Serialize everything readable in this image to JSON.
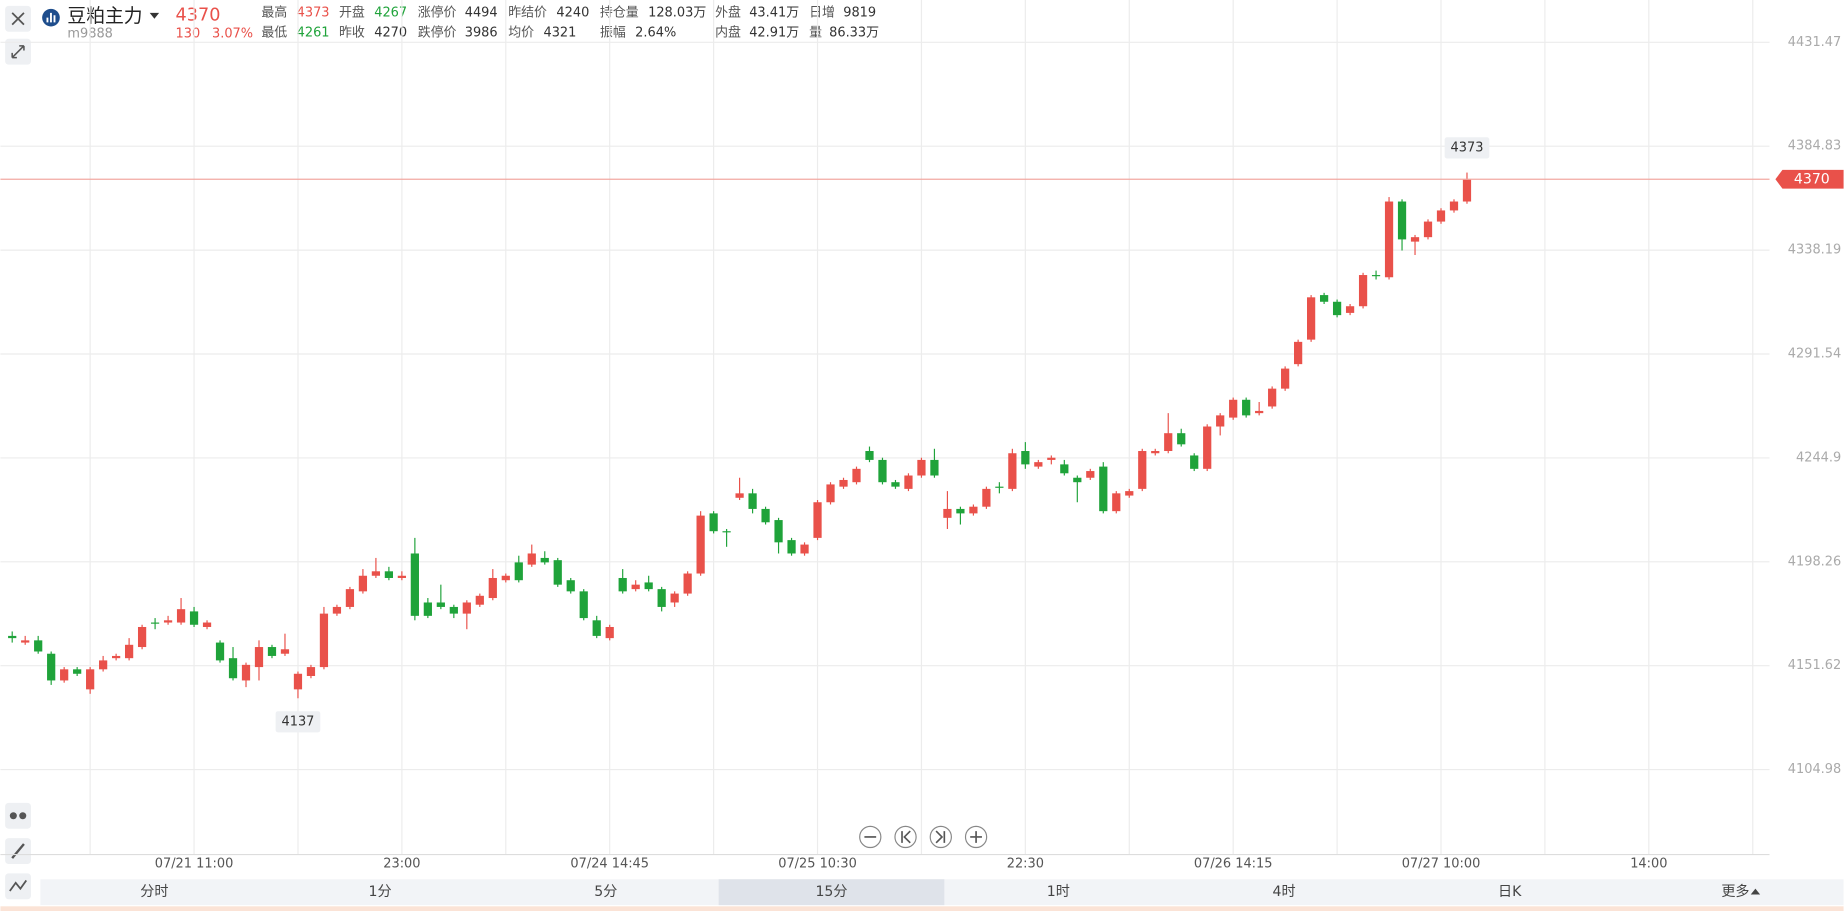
{
  "header": {
    "name": "豆粕主力",
    "code": "m9888",
    "price": "4370",
    "change": "130",
    "change_pct": "3.07%",
    "stats": [
      [
        {
          "label": "最高",
          "value": "4373",
          "color": "#e9514a"
        },
        {
          "label": "开盘",
          "value": "4267",
          "color": "#1fa33a"
        },
        {
          "label": "涨停价",
          "value": "4494"
        },
        {
          "label": "昨结价",
          "value": "4240"
        },
        {
          "label": "持仓量",
          "value": "128.03万"
        },
        {
          "label": "外盘",
          "value": "43.41万"
        },
        {
          "label": "日增",
          "value": "9819"
        }
      ],
      [
        {
          "label": "最低",
          "value": "4261",
          "color": "#1fa33a"
        },
        {
          "label": "昨收",
          "value": "4270"
        },
        {
          "label": "跌停价",
          "value": "3986"
        },
        {
          "label": "均价",
          "value": "4321"
        },
        {
          "label": "振幅",
          "value": "2.64%"
        },
        {
          "label": "内盘",
          "value": "42.91万"
        },
        {
          "label": "量",
          "value": "86.33万"
        }
      ]
    ]
  },
  "tabs": [
    "分时",
    "1分",
    "5分",
    "15分",
    "1时",
    "4时",
    "日K",
    "更多"
  ],
  "selected_tab": 3,
  "chart_data": {
    "type": "candlestick",
    "up_color": "#e9514a",
    "down_color": "#1fa33a",
    "ylim": [
      4066.83,
      4450.47
    ],
    "yticks": [
      4104.98,
      4151.62,
      4198.26,
      4244.9,
      4291.54,
      4338.19,
      4384.83,
      4431.47
    ],
    "grid": true,
    "last_price": 4370,
    "high_label": 4373,
    "low_label": 4137,
    "categories": [
      null,
      null,
      null,
      null,
      null,
      null,
      null,
      null,
      null,
      null,
      null,
      null,
      null,
      null,
      "07/21 11:00",
      null,
      null,
      null,
      null,
      null,
      null,
      null,
      null,
      null,
      null,
      null,
      null,
      null,
      null,
      null,
      "23:00",
      null,
      null,
      null,
      null,
      null,
      null,
      null,
      null,
      null,
      null,
      null,
      null,
      null,
      null,
      null,
      "07/24 14:45",
      null,
      null,
      null,
      null,
      null,
      null,
      null,
      null,
      null,
      null,
      null,
      null,
      null,
      null,
      null,
      "07/25 10:30",
      null,
      null,
      null,
      null,
      null,
      null,
      null,
      null,
      null,
      null,
      null,
      null,
      null,
      null,
      null,
      "22:30",
      null,
      null,
      null,
      null,
      null,
      null,
      null,
      null,
      null,
      null,
      null,
      null,
      null,
      null,
      null,
      "07/26 14:15",
      null,
      null,
      null,
      null,
      null,
      null,
      null,
      null,
      null,
      null,
      null,
      null,
      null,
      null,
      null,
      "07/27 10:00",
      null,
      null,
      null,
      null,
      null,
      null,
      null,
      null,
      null,
      null,
      null,
      null,
      null,
      null,
      null,
      "14:00",
      null,
      null,
      null,
      null,
      null,
      null,
      null,
      null,
      null
    ],
    "open": [
      4165,
      4162,
      4163,
      4157,
      4145,
      4150,
      4141,
      4150,
      4155,
      4155,
      4160,
      4171,
      4171,
      4171,
      4176,
      4169,
      4162,
      4155,
      4145,
      4151,
      4160,
      4157,
      4141,
      4147,
      4151,
      4175,
      4178,
      4185,
      4192,
      4194,
      4191,
      4202,
      4180,
      4180,
      4178,
      4175,
      4179,
      4182,
      4190,
      4198,
      4197,
      4200,
      4199,
      4190,
      4185,
      4172,
      4164,
      4191,
      4186,
      4189,
      4186,
      4180,
      4184,
      4193,
      4220,
      4212,
      4227,
      4229,
      4222,
      4217,
      4208,
      4202,
      4209,
      4225,
      4232,
      4234,
      4248,
      4244,
      4234,
      4231,
      4237,
      4244,
      4218,
      4222,
      4220,
      4223,
      4232,
      4231,
      4248,
      4241,
      4244,
      4242,
      4236,
      4236,
      4241,
      4221,
      4228,
      4231,
      4247,
      4248,
      4256,
      4246,
      4240,
      4259,
      4263,
      4271,
      4265,
      4268,
      4276,
      4287,
      4298,
      4318,
      4315,
      4310,
      4313,
      4327,
      4326,
      4360,
      4342,
      4344,
      4351,
      4356,
      4360,
      null,
      null,
      null,
      null,
      null,
      null,
      null,
      null,
      null,
      null,
      null,
      null,
      null,
      null,
      null,
      null,
      null,
      null,
      null,
      null,
      null,
      null,
      null
    ],
    "high": [
      4167,
      4165,
      4165,
      4158,
      4151,
      4151,
      4151,
      4156,
      4157,
      4164,
      4170,
      4173,
      4174,
      4182,
      4178,
      4172,
      4163,
      4160,
      4153,
      4163,
      4161,
      4166,
      4149,
      4152,
      4178,
      4179,
      4187,
      4195,
      4200,
      4196,
      4194,
      4209,
      4182,
      4188,
      4179,
      4181,
      4184,
      4195,
      4193,
      4201,
      4206,
      4203,
      4200,
      4191,
      4186,
      4174,
      4170,
      4195,
      4190,
      4192,
      4187,
      4185,
      4194,
      4221,
      4221,
      4213,
      4236,
      4231,
      4223,
      4218,
      4209,
      4207,
      4226,
      4234,
      4236,
      4241,
      4250,
      4245,
      4235,
      4238,
      4245,
      4249,
      4230,
      4223,
      4224,
      4232,
      4234,
      4249,
      4252,
      4244,
      4246,
      4244,
      4237,
      4240,
      4243,
      4230,
      4231,
      4249,
      4249,
      4265,
      4258,
      4247,
      4260,
      4265,
      4272,
      4272,
      4270,
      4277,
      4286,
      4298,
      4318,
      4319,
      4316,
      4314,
      4328,
      4329,
      4362,
      4361,
      4345,
      4352,
      4357,
      4361,
      4373,
      null,
      null,
      null,
      null,
      null,
      null,
      null,
      null,
      null,
      null,
      null,
      null,
      null,
      null,
      null,
      null,
      null,
      null,
      null,
      null,
      null,
      null,
      null
    ],
    "low": [
      4162,
      4161,
      4157,
      4143,
      4144,
      4147,
      4139,
      4149,
      4154,
      4154,
      4159,
      4168,
      4170,
      4170,
      4169,
      4168,
      4153,
      4145,
      4142,
      4145,
      4155,
      4156,
      4137,
      4146,
      4150,
      4174,
      4177,
      4184,
      4191,
      4190,
      4190,
      4172,
      4173,
      4177,
      4173,
      4168,
      4178,
      4181,
      4189,
      4189,
      4196,
      4197,
      4187,
      4184,
      4172,
      4164,
      4163,
      4184,
      4185,
      4185,
      4176,
      4178,
      4183,
      4192,
      4211,
      4205,
      4226,
      4220,
      4215,
      4202,
      4201,
      4201,
      4208,
      4224,
      4231,
      4233,
      4243,
      4233,
      4231,
      4230,
      4236,
      4236,
      4213,
      4215,
      4219,
      4222,
      4229,
      4230,
      4240,
      4240,
      4242,
      4237,
      4225,
      4235,
      4220,
      4220,
      4227,
      4230,
      4246,
      4247,
      4250,
      4239,
      4239,
      4255,
      4262,
      4263,
      4264,
      4267,
      4275,
      4286,
      4297,
      4314,
      4308,
      4309,
      4312,
      4325,
      4325,
      4338,
      4336,
      4343,
      4350,
      4355,
      4359,
      null,
      null,
      null,
      null,
      null,
      null,
      null,
      null,
      null,
      null,
      null,
      null,
      null,
      null,
      null,
      null,
      null,
      null,
      null,
      null,
      null,
      null,
      null
    ],
    "close": [
      4164,
      4163,
      4158,
      4145,
      4150,
      4148,
      4150,
      4154,
      4156,
      4161,
      4169,
      4171,
      4172,
      4177,
      4170,
      4171,
      4154,
      4146,
      4152,
      4160,
      4156,
      4159,
      4148,
      4151,
      4175,
      4178,
      4186,
      4192,
      4194,
      4191,
      4192,
      4174,
      4174,
      4178,
      4175,
      4180,
      4183,
      4191,
      4192,
      4190,
      4202,
      4198,
      4188,
      4185,
      4173,
      4165,
      4169,
      4185,
      4188,
      4186,
      4178,
      4184,
      4193,
      4219,
      4212,
      4212,
      4229,
      4222,
      4216,
      4207,
      4202,
      4206,
      4225,
      4233,
      4235,
      4240,
      4244,
      4234,
      4232,
      4237,
      4244,
      4237,
      4222,
      4220,
      4223,
      4231,
      4232,
      4247,
      4242,
      4243,
      4245,
      4238,
      4234,
      4239,
      4221,
      4229,
      4230,
      4248,
      4248,
      4256,
      4251,
      4240,
      4259,
      4264,
      4271,
      4264,
      4266,
      4276,
      4285,
      4297,
      4317,
      4315,
      4309,
      4313,
      4327,
      4327,
      4360,
      4343,
      4344,
      4351,
      4356,
      4360,
      4370,
      null,
      null,
      null,
      null,
      null,
      null,
      null,
      null,
      null,
      null,
      null,
      null,
      null,
      null,
      null,
      null,
      null,
      null,
      null,
      null,
      null,
      null,
      null
    ]
  }
}
